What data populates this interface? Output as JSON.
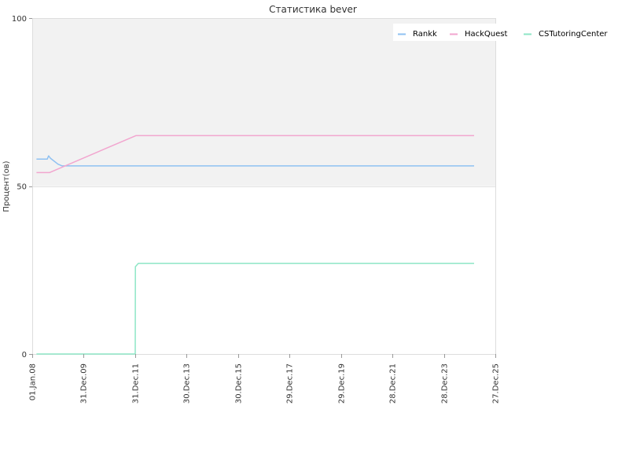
{
  "chart_data": {
    "type": "line",
    "title": "Статистика bever",
    "xlabel": "",
    "ylabel": "Процент(ов)",
    "ylim": [
      0,
      100
    ],
    "xlim": [
      "2008-01-01",
      "2025-12-27"
    ],
    "x_tick_labels": [
      "01.Jan.08",
      "31.Dec.09",
      "31.Dec.11",
      "30.Dec.13",
      "30.Dec.15",
      "29.Dec.17",
      "29.Dec.19",
      "28.Dec.21",
      "28.Dec.23",
      "27.Dec.25"
    ],
    "x_tick_dates": [
      "2008-01-01",
      "2009-12-31",
      "2011-12-31",
      "2013-12-30",
      "2015-12-30",
      "2017-12-29",
      "2019-12-29",
      "2021-12-28",
      "2023-12-28",
      "2025-12-27"
    ],
    "y_ticks": [
      0,
      50,
      100
    ],
    "background_band": {
      "from": 50,
      "to": 100,
      "color": "#f2f2f2"
    },
    "legend_position": "top-right",
    "series": [
      {
        "name": "Rankk",
        "color": "#8fc1f2",
        "points": [
          [
            "2008-03-01",
            58
          ],
          [
            "2008-08-01",
            58
          ],
          [
            "2008-08-20",
            59
          ],
          [
            "2008-09-15",
            58.3
          ],
          [
            "2009-01-01",
            56.5
          ],
          [
            "2009-03-01",
            56
          ],
          [
            "2025-03-01",
            56
          ]
        ]
      },
      {
        "name": "HackQuest",
        "color": "#f2a6cf",
        "points": [
          [
            "2008-03-01",
            54
          ],
          [
            "2008-09-01",
            54
          ],
          [
            "2012-01-10",
            65
          ],
          [
            "2025-03-01",
            65
          ]
        ]
      },
      {
        "name": "CSTutoringCenter",
        "color": "#8ee6c6",
        "points": [
          [
            "2008-03-01",
            0
          ],
          [
            "2012-01-01",
            0
          ],
          [
            "2012-01-03",
            26
          ],
          [
            "2012-02-15",
            27
          ],
          [
            "2025-03-01",
            27
          ]
        ]
      }
    ]
  }
}
